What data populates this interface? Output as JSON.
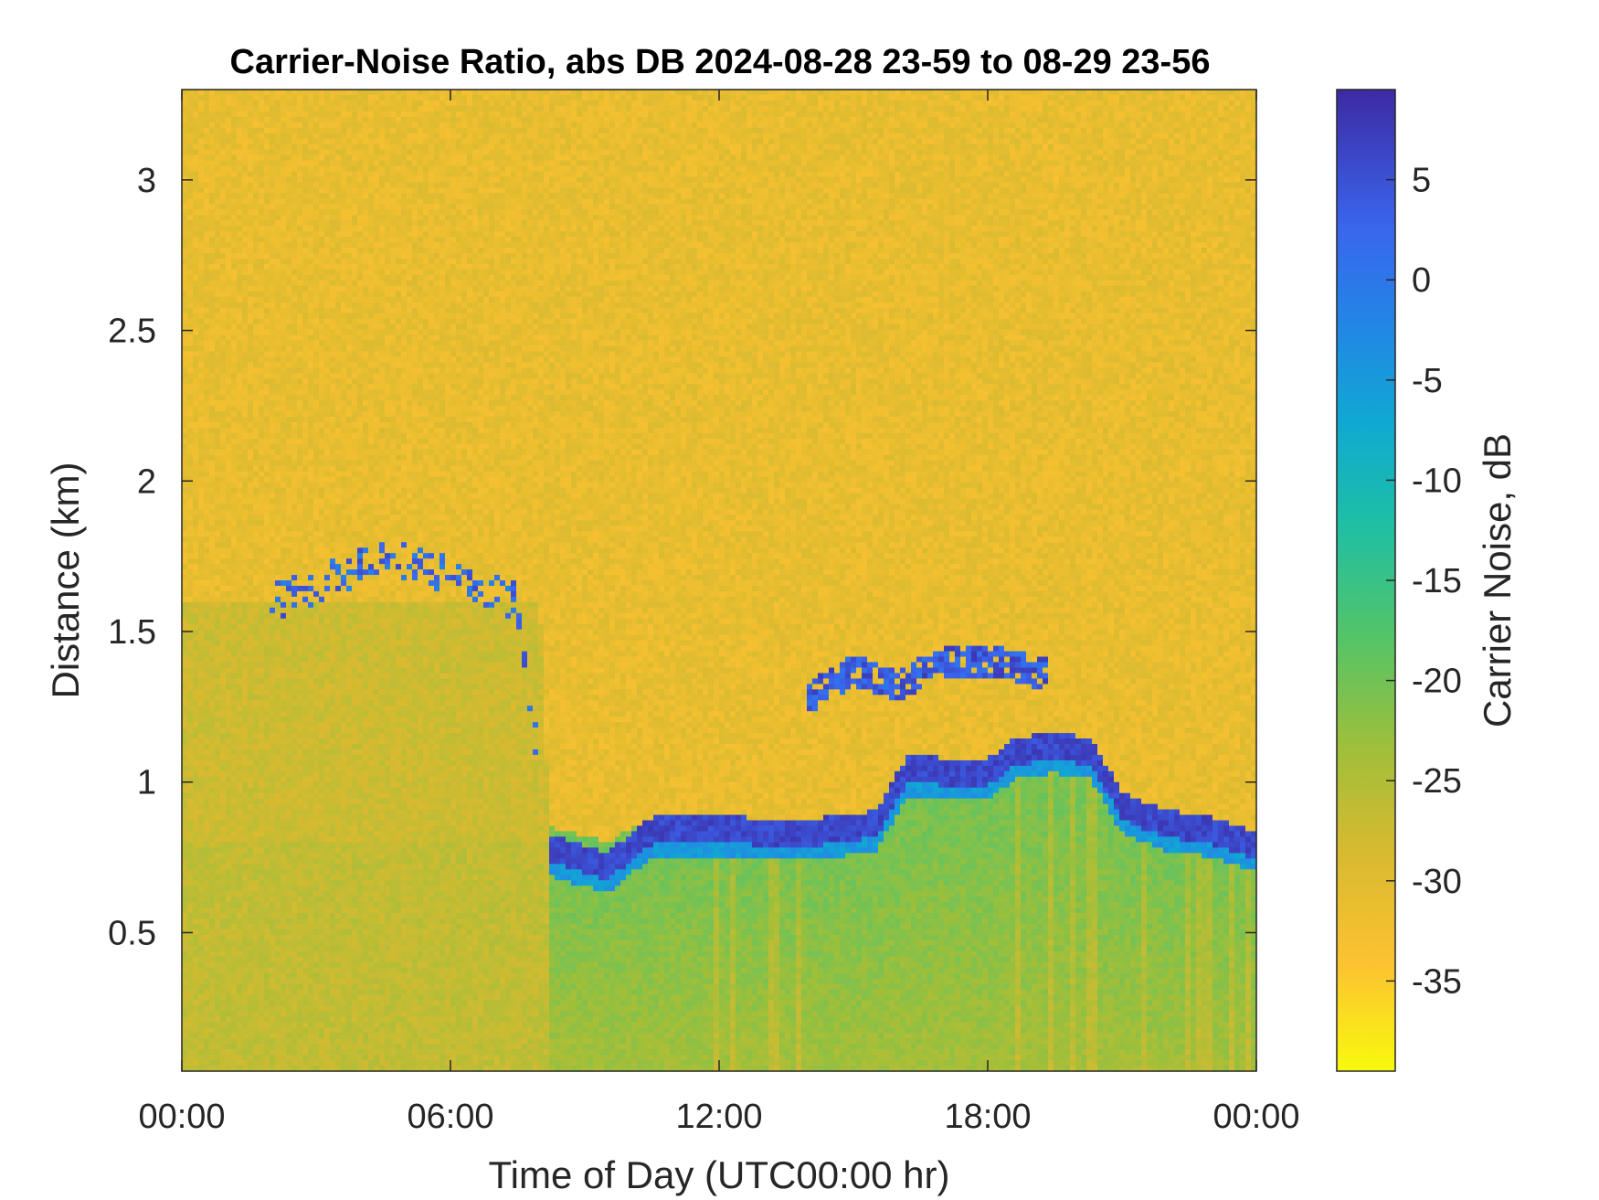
{
  "chart_data": {
    "type": "heatmap",
    "title": "Carrier-Noise Ratio, abs DB 2024-08-28 23-59 to 08-29 23-56",
    "xlabel": "Time of Day (UTC00:00 hr)",
    "ylabel": "Distance (km)",
    "xlim_hours": [
      0,
      24
    ],
    "ylim_km": [
      0.04,
      3.3
    ],
    "x_ticks": [
      {
        "hour": 0,
        "label": "00:00"
      },
      {
        "hour": 6,
        "label": "06:00"
      },
      {
        "hour": 12,
        "label": "12:00"
      },
      {
        "hour": 18,
        "label": "18:00"
      },
      {
        "hour": 24,
        "label": "00:00"
      }
    ],
    "y_ticks": [
      {
        "km": 0.5,
        "label": "0.5"
      },
      {
        "km": 1,
        "label": "1"
      },
      {
        "km": 1.5,
        "label": "1.5"
      },
      {
        "km": 2,
        "label": "2"
      },
      {
        "km": 2.5,
        "label": "2.5"
      },
      {
        "km": 3,
        "label": "3"
      }
    ],
    "colorbar": {
      "label": "Carrier Noise, dB",
      "clim": [
        -39.5,
        9.5
      ],
      "colormap": "parula-reversed",
      "ticks": [
        {
          "value": 5,
          "label": "5"
        },
        {
          "value": 0,
          "label": "0"
        },
        {
          "value": -5,
          "label": "-5"
        },
        {
          "value": -10,
          "label": "-10"
        },
        {
          "value": -15,
          "label": "-15"
        },
        {
          "value": -20,
          "label": "-20"
        },
        {
          "value": -25,
          "label": "-25"
        },
        {
          "value": -30,
          "label": "-30"
        },
        {
          "value": -35,
          "label": "-35"
        }
      ]
    },
    "background_level_db": -31,
    "aerosol_layer_top_km": [
      {
        "hour": 0,
        "km": 1.6
      },
      {
        "hour": 3,
        "km": 1.6
      },
      {
        "hour": 6,
        "km": 1.6
      },
      {
        "hour": 8,
        "km": 1.6
      },
      {
        "hour": 8.2,
        "km": 0.85
      },
      {
        "hour": 9.5,
        "km": 0.8
      },
      {
        "hour": 10.5,
        "km": 0.88
      },
      {
        "hour": 12,
        "km": 0.86
      },
      {
        "hour": 14,
        "km": 0.85
      },
      {
        "hour": 15.5,
        "km": 0.88
      },
      {
        "hour": 16.2,
        "km": 1.05
      },
      {
        "hour": 18,
        "km": 1.05
      },
      {
        "hour": 18.6,
        "km": 1.1
      },
      {
        "hour": 19.5,
        "km": 1.12
      },
      {
        "hour": 20.3,
        "km": 1.1
      },
      {
        "hour": 21,
        "km": 0.95
      },
      {
        "hour": 22,
        "km": 0.88
      },
      {
        "hour": 23,
        "km": 0.85
      },
      {
        "hour": 24,
        "km": 0.8
      }
    ],
    "cloud_base_km": [
      {
        "hour": 0,
        "km": 0
      },
      {
        "hour": 2.1,
        "km": 1.6
      },
      {
        "hour": 3,
        "km": 1.65
      },
      {
        "hour": 4.5,
        "km": 1.75
      },
      {
        "hour": 5.7,
        "km": 1.7
      },
      {
        "hour": 7.5,
        "km": 1.6
      },
      {
        "hour": 8.2,
        "km": 0.78
      },
      {
        "hour": 9.5,
        "km": 0.72
      },
      {
        "hour": 10.5,
        "km": 0.84
      },
      {
        "hour": 12,
        "km": 0.84
      },
      {
        "hour": 14,
        "km": 0.83
      },
      {
        "hour": 15.5,
        "km": 0.86
      },
      {
        "hour": 16.2,
        "km": 1.04
      },
      {
        "hour": 18,
        "km": 1.03
      },
      {
        "hour": 18.6,
        "km": 1.1
      },
      {
        "hour": 19.5,
        "km": 1.12
      },
      {
        "hour": 20.3,
        "km": 1.1
      },
      {
        "hour": 21,
        "km": 0.92
      },
      {
        "hour": 22,
        "km": 0.86
      },
      {
        "hour": 23,
        "km": 0.84
      },
      {
        "hour": 24,
        "km": 0.79
      }
    ],
    "upper_cloud_km": [
      {
        "hour": 14,
        "km": 1.28
      },
      {
        "hour": 15,
        "km": 1.37
      },
      {
        "hour": 16,
        "km": 1.32
      },
      {
        "hour": 17,
        "km": 1.4
      },
      {
        "hour": 18.2,
        "km": 1.4
      },
      {
        "hour": 19.2,
        "km": 1.36
      }
    ]
  }
}
